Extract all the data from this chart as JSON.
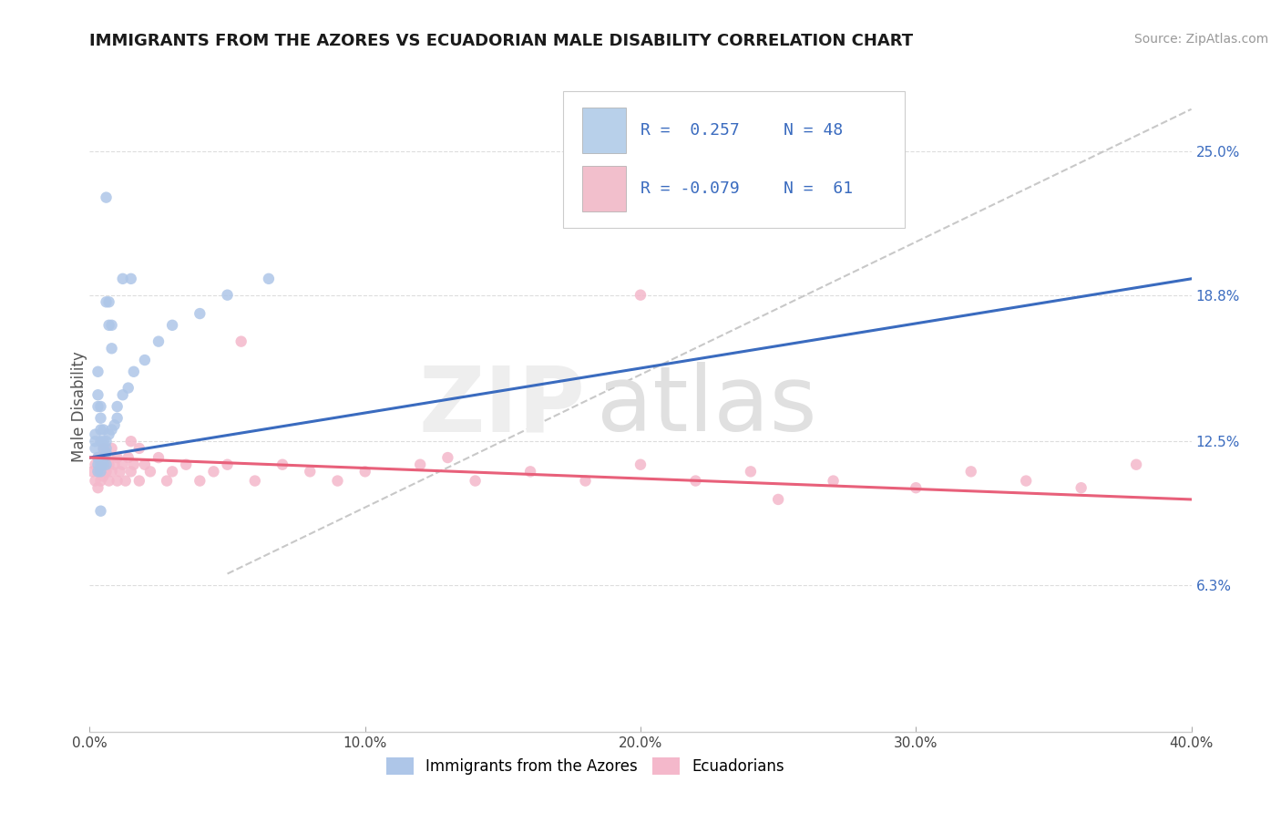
{
  "title": "IMMIGRANTS FROM THE AZORES VS ECUADORIAN MALE DISABILITY CORRELATION CHART",
  "source": "Source: ZipAtlas.com",
  "ylabel": "Male Disability",
  "xlim": [
    0.0,
    0.4
  ],
  "ylim": [
    0.0,
    0.28
  ],
  "yticks": [
    0.063,
    0.125,
    0.188,
    0.25
  ],
  "ytick_labels": [
    "6.3%",
    "12.5%",
    "18.8%",
    "25.0%"
  ],
  "xticks": [
    0.0,
    0.1,
    0.2,
    0.3,
    0.4
  ],
  "xtick_labels": [
    "0.0%",
    "10.0%",
    "20.0%",
    "30.0%",
    "40.0%"
  ],
  "blue_color": "#aec6e8",
  "pink_color": "#f4b8cb",
  "blue_line_color": "#3a6bbf",
  "pink_line_color": "#e8607a",
  "dashed_line_color": "#bbbbbb",
  "background_color": "#ffffff",
  "legend_box_blue": "#b8d0ea",
  "legend_box_pink": "#f2bfcc",
  "legend_text_color": "#3a6bbf",
  "legend_r1": "R =  0.257",
  "legend_n1": "N = 48",
  "legend_r2": "R = -0.079",
  "legend_n2": "N =  61",
  "azores_x": [
    0.006,
    0.012,
    0.015,
    0.006,
    0.007,
    0.007,
    0.008,
    0.008,
    0.003,
    0.003,
    0.003,
    0.004,
    0.004,
    0.004,
    0.004,
    0.005,
    0.005,
    0.005,
    0.005,
    0.006,
    0.006,
    0.002,
    0.002,
    0.002,
    0.003,
    0.003,
    0.003,
    0.004,
    0.004,
    0.005,
    0.005,
    0.006,
    0.006,
    0.007,
    0.008,
    0.009,
    0.01,
    0.01,
    0.012,
    0.014,
    0.016,
    0.02,
    0.025,
    0.03,
    0.04,
    0.05,
    0.065,
    0.004
  ],
  "azores_y": [
    0.23,
    0.195,
    0.195,
    0.185,
    0.185,
    0.175,
    0.175,
    0.165,
    0.155,
    0.145,
    0.14,
    0.14,
    0.135,
    0.13,
    0.125,
    0.13,
    0.125,
    0.122,
    0.118,
    0.12,
    0.115,
    0.128,
    0.125,
    0.122,
    0.118,
    0.115,
    0.112,
    0.115,
    0.112,
    0.118,
    0.115,
    0.125,
    0.122,
    0.128,
    0.13,
    0.132,
    0.135,
    0.14,
    0.145,
    0.148,
    0.155,
    0.16,
    0.168,
    0.175,
    0.18,
    0.188,
    0.195,
    0.095
  ],
  "ecuador_x": [
    0.001,
    0.002,
    0.002,
    0.003,
    0.003,
    0.003,
    0.004,
    0.004,
    0.004,
    0.005,
    0.005,
    0.005,
    0.006,
    0.006,
    0.007,
    0.007,
    0.008,
    0.008,
    0.009,
    0.01,
    0.01,
    0.011,
    0.012,
    0.013,
    0.014,
    0.015,
    0.015,
    0.016,
    0.018,
    0.018,
    0.02,
    0.022,
    0.025,
    0.028,
    0.03,
    0.035,
    0.04,
    0.045,
    0.05,
    0.055,
    0.06,
    0.07,
    0.08,
    0.09,
    0.1,
    0.12,
    0.13,
    0.14,
    0.16,
    0.18,
    0.2,
    0.22,
    0.24,
    0.25,
    0.27,
    0.3,
    0.32,
    0.34,
    0.36,
    0.38,
    0.2
  ],
  "ecuador_y": [
    0.112,
    0.115,
    0.108,
    0.118,
    0.112,
    0.105,
    0.118,
    0.112,
    0.108,
    0.122,
    0.115,
    0.11,
    0.118,
    0.112,
    0.115,
    0.108,
    0.122,
    0.112,
    0.115,
    0.118,
    0.108,
    0.112,
    0.115,
    0.108,
    0.118,
    0.125,
    0.112,
    0.115,
    0.122,
    0.108,
    0.115,
    0.112,
    0.118,
    0.108,
    0.112,
    0.115,
    0.108,
    0.112,
    0.115,
    0.168,
    0.108,
    0.115,
    0.112,
    0.108,
    0.112,
    0.115,
    0.118,
    0.108,
    0.112,
    0.108,
    0.115,
    0.108,
    0.112,
    0.1,
    0.108,
    0.105,
    0.112,
    0.108,
    0.105,
    0.115,
    0.188
  ],
  "blue_trend_x": [
    0.0,
    0.4
  ],
  "blue_trend_y": [
    0.118,
    0.195
  ],
  "pink_trend_x": [
    0.0,
    0.4
  ],
  "pink_trend_y": [
    0.118,
    0.1
  ],
  "dashed_trend_x": [
    0.05,
    0.4
  ],
  "dashed_trend_y": [
    0.068,
    0.268
  ]
}
